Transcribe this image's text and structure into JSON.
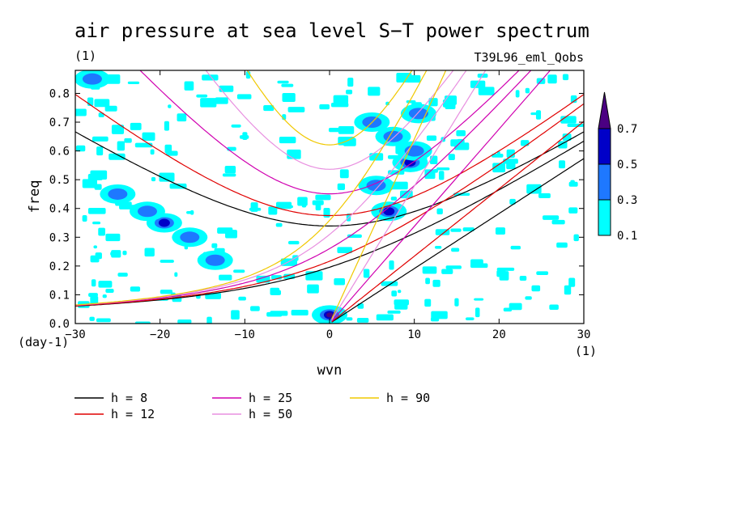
{
  "chart_data": {
    "type": "heatmap",
    "title": "air pressure at sea level S−T power spectrum",
    "units_label": "(1)",
    "experiment_label": "T39L96_eml_Qobs",
    "xlabel": "wvn",
    "ylabel": "freq",
    "x_unit": "(1)",
    "y_unit": "(day-1)",
    "xlim": [
      -30,
      30
    ],
    "ylim": [
      0.0,
      0.88
    ],
    "x_ticks": [
      -30,
      -20,
      -10,
      0,
      10,
      20,
      30
    ],
    "x_tick_labels": [
      "−30",
      "−20",
      "−10",
      "0",
      "10",
      "20",
      "30"
    ],
    "y_ticks": [
      0.0,
      0.1,
      0.2,
      0.3,
      0.4,
      0.5,
      0.6,
      0.7,
      0.8
    ],
    "y_tick_labels": [
      "0.0",
      "0.1",
      "0.2",
      "0.3",
      "0.4",
      "0.5",
      "0.6",
      "0.7",
      "0.8"
    ],
    "contour_levels": [
      0.1,
      0.3,
      0.5,
      0.7
    ],
    "colorbar": {
      "labels": [
        "0.1",
        "0.3",
        "0.5",
        "0.7"
      ],
      "colors": [
        "#00ffff",
        "#1e78ff",
        "#0000c8",
        "#4b0082"
      ]
    },
    "shaded_regions": [
      {
        "x": 0,
        "y": 0.03,
        "level": 0.7
      },
      {
        "x": -19.5,
        "y": 0.35,
        "level": 0.5
      },
      {
        "x": 7,
        "y": 0.39,
        "level": 0.5
      },
      {
        "x": 9.5,
        "y": 0.56,
        "level": 0.5
      },
      {
        "x": 7.5,
        "y": 0.65,
        "level": 0.3
      },
      {
        "x": 10.5,
        "y": 0.73,
        "level": 0.3
      },
      {
        "x": -25,
        "y": 0.45,
        "level": 0.3
      },
      {
        "x": -21.5,
        "y": 0.39,
        "level": 0.3
      },
      {
        "x": -16.5,
        "y": 0.3,
        "level": 0.3
      },
      {
        "x": -13.5,
        "y": 0.22,
        "level": 0.3
      },
      {
        "x": 5.5,
        "y": 0.48,
        "level": 0.3
      },
      {
        "x": 5,
        "y": 0.7,
        "level": 0.3
      },
      {
        "x": -28,
        "y": 0.85,
        "level": 0.3
      },
      {
        "x": 10,
        "y": 0.6,
        "level": 0.3
      }
    ],
    "dispersion_curves": {
      "legend": [
        {
          "label": "h =  8",
          "color": "#000000"
        },
        {
          "label": "h = 12",
          "color": "#e00000"
        },
        {
          "label": "h = 25",
          "color": "#d000b0"
        },
        {
          "label": "h = 50",
          "color": "#e890e0"
        },
        {
          "label": "h = 90",
          "color": "#f0c800"
        }
      ],
      "equivalent_depths_m": [
        8,
        12,
        25,
        50,
        90
      ],
      "colors": [
        "#000000",
        "#e00000",
        "#d000b0",
        "#e890e0",
        "#f0c800"
      ]
    },
    "grid": false,
    "legend_placement": "bottom-left"
  }
}
